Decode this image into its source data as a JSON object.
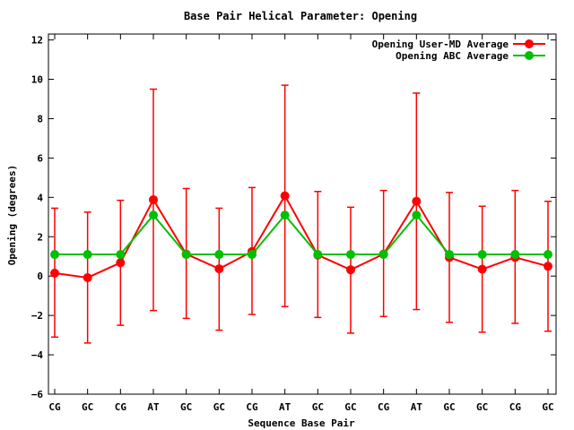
{
  "chart_data": {
    "type": "line",
    "title": "Base Pair Helical Parameter: Opening",
    "xlabel": "Sequence Base Pair",
    "ylabel": "Opening (degrees)",
    "categories": [
      "CG",
      "GC",
      "CG",
      "AT",
      "GC",
      "GC",
      "CG",
      "AT",
      "GC",
      "GC",
      "CG",
      "AT",
      "GC",
      "GC",
      "CG",
      "GC"
    ],
    "ylim": [
      -6,
      12.3
    ],
    "yticks": [
      -6,
      -4,
      -2,
      0,
      2,
      4,
      6,
      8,
      10,
      12
    ],
    "ytick_labels": [
      "−6",
      "−4",
      "−2",
      "0",
      "2",
      "4",
      "6",
      "8",
      "10",
      "12"
    ],
    "legend_position": "top-right",
    "series": [
      {
        "name": "Opening User-MD Average",
        "color": "#ff0000",
        "values": [
          0.15,
          -0.08,
          0.68,
          3.88,
          1.12,
          0.37,
          1.25,
          4.08,
          1.07,
          0.32,
          1.12,
          3.8,
          0.95,
          0.35,
          0.95,
          0.5
        ],
        "error_low": [
          -3.1,
          -3.4,
          -2.5,
          -1.75,
          -2.15,
          -2.75,
          -1.95,
          -1.55,
          -2.1,
          -2.9,
          -2.05,
          -1.7,
          -2.35,
          -2.85,
          -2.4,
          -2.8
        ],
        "error_high": [
          3.45,
          3.25,
          3.85,
          9.5,
          4.45,
          3.45,
          4.5,
          9.7,
          4.3,
          3.5,
          4.35,
          9.3,
          4.25,
          3.55,
          4.35,
          3.8
        ]
      },
      {
        "name": "Opening ABC Average",
        "color": "#00c000",
        "values": [
          1.1,
          1.1,
          1.1,
          3.1,
          1.1,
          1.1,
          1.1,
          3.1,
          1.1,
          1.1,
          1.1,
          3.1,
          1.1,
          1.1,
          1.1,
          1.1
        ]
      }
    ]
  }
}
